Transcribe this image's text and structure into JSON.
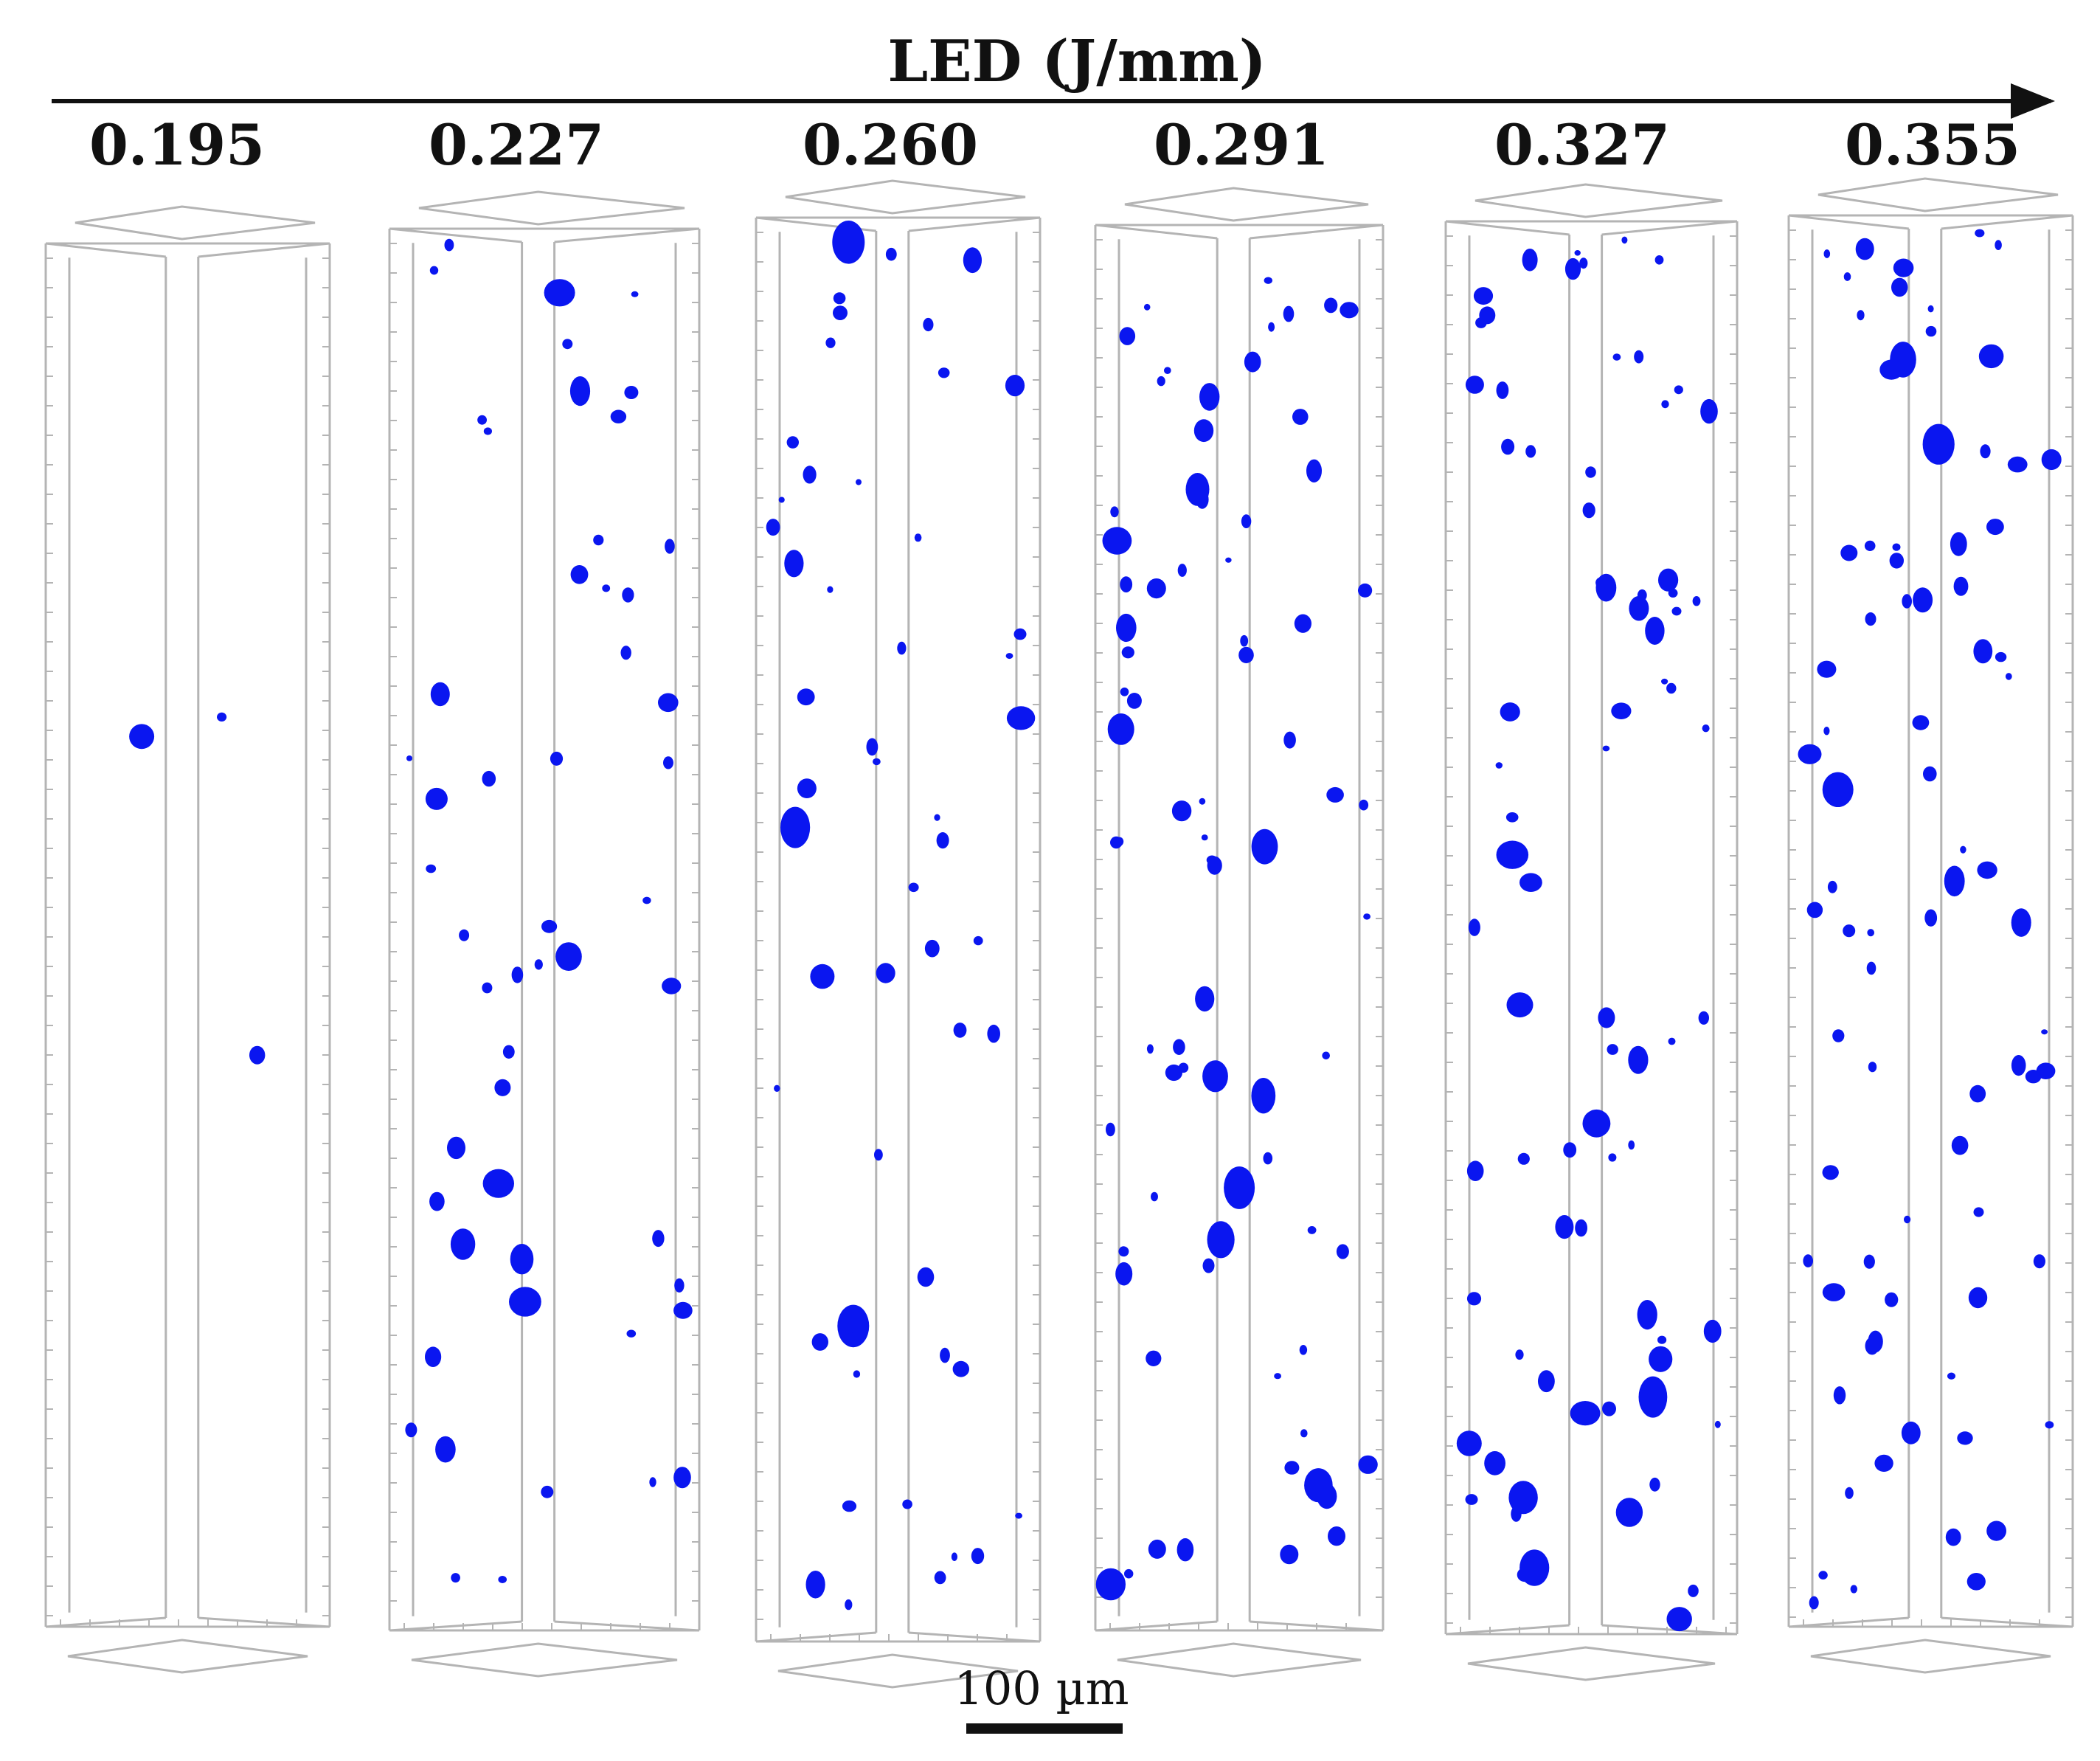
{
  "figure": {
    "axis_title": "LED (J/mm)",
    "scale_bar_label": "100 µm",
    "pore_color": "#0a16f0",
    "frame_color": "#b4b4b4",
    "samples": [
      {
        "led": "0.195",
        "pore_level": "very few"
      },
      {
        "led": "0.227",
        "pore_level": "moderate"
      },
      {
        "led": "0.260",
        "pore_level": "moderate"
      },
      {
        "led": "0.291",
        "pore_level": "many"
      },
      {
        "led": "0.327",
        "pore_level": "many"
      },
      {
        "led": "0.355",
        "pore_level": "many"
      }
    ]
  }
}
